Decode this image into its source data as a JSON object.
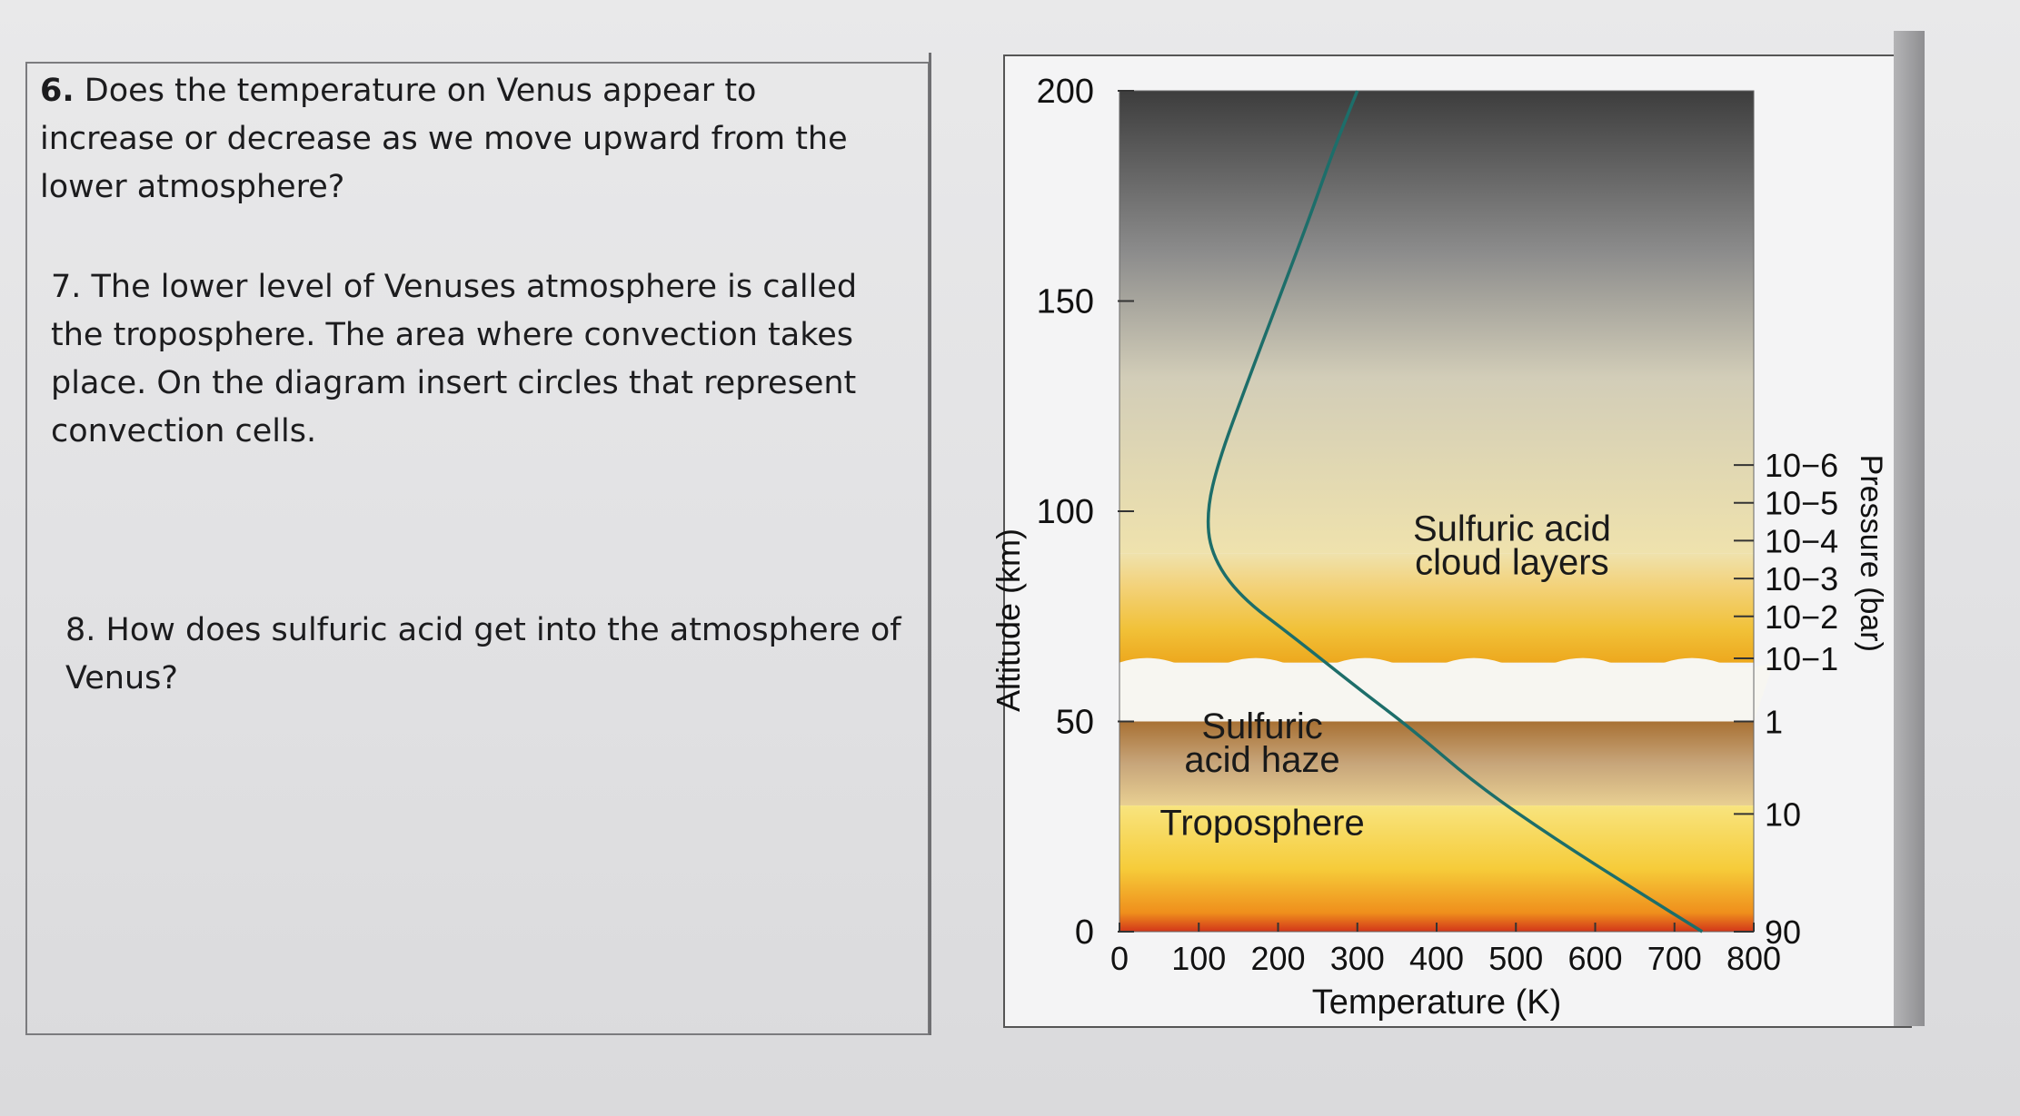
{
  "questions": {
    "q6": {
      "number": "6.",
      "text": "Does the temperature on Venus appear to increase or decrease as we move upward from the lower atmosphere?"
    },
    "q7": {
      "text": "7. The lower level of Venuses atmosphere is called the troposphere. The area where convection takes place. On the diagram insert circles that represent convection cells."
    },
    "q8": {
      "text": "8. How does sulfuric acid get into the atmosphere of Venus?"
    }
  },
  "chart_data": {
    "type": "line",
    "xlabel": "Temperature (K)",
    "ylabel": "Altitude (km)",
    "y2label": "Pressure (bar)",
    "xlim": [
      0,
      800
    ],
    "ylim": [
      0,
      200
    ],
    "x_ticks": [
      "0",
      "100",
      "200",
      "300",
      "400",
      "500",
      "600",
      "700",
      "800"
    ],
    "y_ticks": [
      "0",
      "50",
      "100",
      "150",
      "200"
    ],
    "pressure_ticks": [
      {
        "altitude": 0,
        "label": "90"
      },
      {
        "altitude": 28,
        "label": "10"
      },
      {
        "altitude": 50,
        "label": "1"
      },
      {
        "altitude": 65,
        "label": "10−1"
      },
      {
        "altitude": 75,
        "label": "10−2"
      },
      {
        "altitude": 84,
        "label": "10−3"
      },
      {
        "altitude": 93,
        "label": "10−4"
      },
      {
        "altitude": 102,
        "label": "10−5"
      },
      {
        "altitude": 111,
        "label": "10−6"
      }
    ],
    "series": [
      {
        "x": [
          735,
          650,
          550,
          450,
          370,
          300,
          220,
          150,
          115,
          110,
          125,
          160,
          200,
          240,
          270,
          300
        ],
        "y": [
          0,
          10,
          22,
          35,
          48,
          58,
          70,
          80,
          90,
          100,
          112,
          130,
          150,
          170,
          186,
          200
        ]
      }
    ],
    "annotations": [
      {
        "text": "Sulfuric acid",
        "x": 495,
        "y": 93
      },
      {
        "text": "cloud layers",
        "x": 495,
        "y": 85
      },
      {
        "text": "Sulfuric",
        "x": 180,
        "y": 46
      },
      {
        "text": "acid haze",
        "x": 180,
        "y": 38
      },
      {
        "text": "Troposphere",
        "x": 180,
        "y": 23
      }
    ],
    "colors": {
      "curve": "#1d6e6a",
      "haze": "#a9753a",
      "cloud": "#f2c437",
      "upper": "#454545",
      "surface": "#cf2a18"
    }
  }
}
